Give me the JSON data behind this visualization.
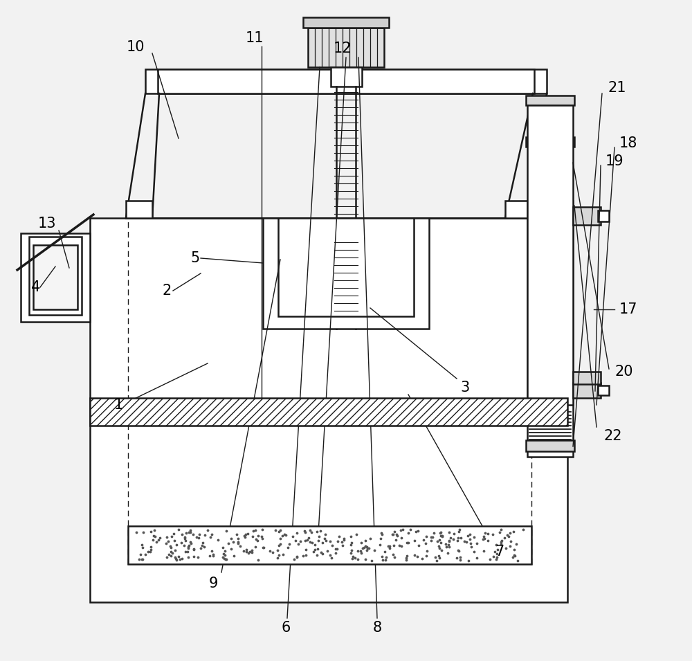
{
  "bg_color": "#f2f2f2",
  "line_color": "#1a1a1a",
  "figsize": [
    10.0,
    9.55
  ],
  "dpi": 100,
  "label_fontsize": 15
}
